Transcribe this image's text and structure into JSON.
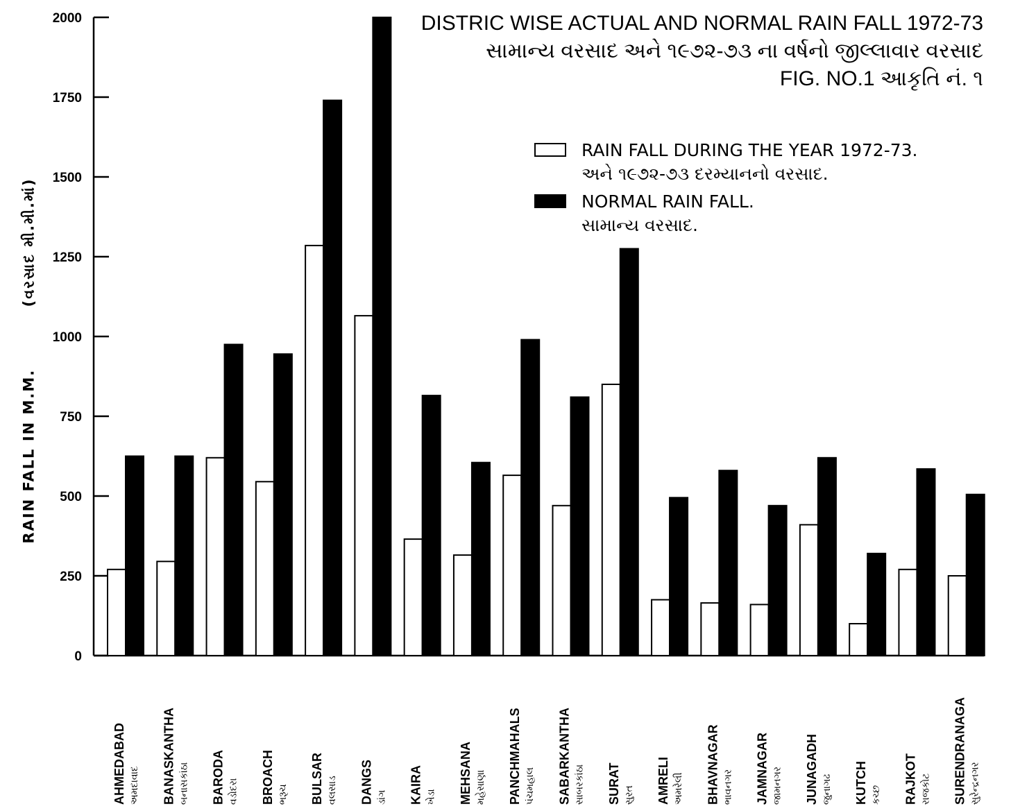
{
  "title": {
    "line1": "DISTRIC WISE  ACTUAL AND NORMAL RAIN FALL 1972-73",
    "line2": "સામાન્ય વરસાદ અને ૧૯૭૨-૭૩ ના વર્ષનો જીલ્લાવાર વરસાદ",
    "line3": "FIG. NO.1 આકૃતિ નં. ૧"
  },
  "legend": {
    "actual_label": "RAIN FALL DURING THE YEAR 1972-73.",
    "actual_label_gu": "અને ૧૯૭૨-૭૩ દરમ્યાનનો વરસાદ.",
    "normal_label": "NORMAL RAIN FALL.",
    "normal_label_gu": "સામાન્ય વરસાદ."
  },
  "axis": {
    "ylabel": "RAIN FALL IN M.M.",
    "ylabel_gu": "(વરસાદ મી.મી.માં)"
  },
  "colors": {
    "actual": "#ffffff",
    "normal": "#000000",
    "stroke": "#000000"
  },
  "chart_data": {
    "type": "bar",
    "title": "DISTRIC WISE  ACTUAL AND NORMAL RAIN FALL 1972-73",
    "ylabel": "RAIN FALL IN M.M.",
    "ylim": [
      0,
      2000
    ],
    "yticks": [
      0,
      250,
      500,
      750,
      1000,
      1250,
      1500,
      1750,
      2000
    ],
    "grid": false,
    "legend_position": "top-right",
    "categories": [
      "AHMEDABAD",
      "BANASKANTHA",
      "BARODA",
      "BROACH",
      "BULSAR",
      "DANGS",
      "KAIRA",
      "MEHSANA",
      "PANCHMAHALS",
      "SABARKANTHA",
      "SURAT",
      "AMRELI",
      "BHAVNAGAR",
      "JAMNAGAR",
      "JUNAGADH",
      "KUTCH",
      "RAJKOT",
      "SURENDRANAGA"
    ],
    "categories_gu": [
      "અમદાવાદ",
      "બનાસકાંઠા",
      "વડોદરા",
      "ભરૂચ",
      "વલસાડ",
      "ડાંગ",
      "ખેડા",
      "મહેસાણા",
      "પંચમહાલ",
      "સાબરકાંઠા",
      "સુરત",
      "અમરેલી",
      "ભાવનગર",
      "જામનગર",
      "જુનાગઢ",
      "કચ્છ",
      "રાજકોટ",
      "સુરેન્દ્રનગર"
    ],
    "series": [
      {
        "name": "RAIN FALL DURING THE YEAR 1972-73.",
        "values": [
          270,
          295,
          620,
          545,
          1285,
          1065,
          365,
          315,
          565,
          470,
          850,
          175,
          165,
          160,
          410,
          100,
          270,
          250
        ]
      },
      {
        "name": "NORMAL RAIN FALL.",
        "values": [
          625,
          625,
          975,
          945,
          1740,
          2000,
          815,
          605,
          990,
          810,
          1275,
          495,
          580,
          470,
          620,
          320,
          585,
          505
        ]
      }
    ]
  }
}
